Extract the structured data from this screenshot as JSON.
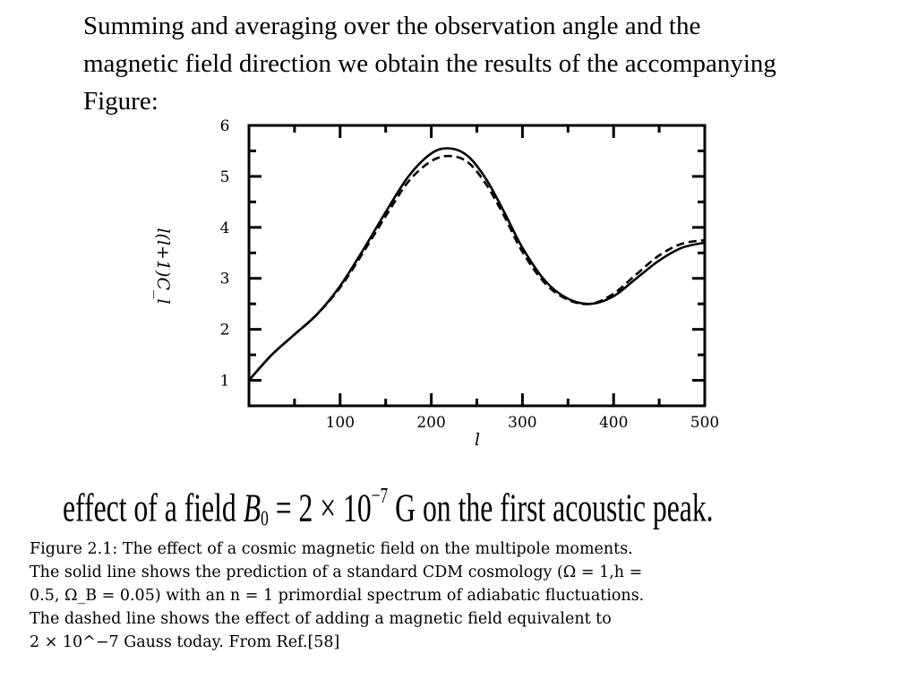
{
  "intro_lines": [
    "Summing and averaging over the observation angle and the",
    "magnetic field direction we obtain the results of the accompanying",
    "Figure:"
  ],
  "headline": {
    "part1": "effect of a field ",
    "b": "B",
    "b_sub": "0",
    "part2": " = 2 × 10",
    "exp": "−7",
    "part3": " G on the first acoustic peak."
  },
  "caption_lines": [
    "Figure 2.1: The effect of a cosmic magnetic field on the multipole moments.",
    "The solid line shows the prediction of a standard CDM cosmology (Ω = 1,h =",
    "0.5, Ω_B = 0.05) with an n = 1 primordial spectrum of adiabatic fluctuations.",
    "The dashed line shows the effect of adding a magnetic field equivalent to",
    "2 × 10^−7 Gauss today. From Ref.[58]"
  ],
  "chart_data": {
    "type": "line",
    "xlabel": "l",
    "ylabel": "l(l+1)C_l",
    "xlim": [
      0,
      500
    ],
    "ylim": [
      0.5,
      6
    ],
    "xticks": [
      100,
      200,
      300,
      400,
      500
    ],
    "yticks": [
      1,
      2,
      3,
      4,
      5,
      6
    ],
    "legend": "none",
    "grid": false,
    "series": [
      {
        "style": "solid",
        "x": [
          0,
          25,
          50,
          75,
          100,
          125,
          150,
          175,
          200,
          220,
          240,
          260,
          280,
          300,
          325,
          350,
          375,
          400,
          425,
          450,
          475,
          500
        ],
        "y": [
          1.0,
          1.5,
          1.9,
          2.3,
          2.85,
          3.55,
          4.3,
          5.0,
          5.45,
          5.55,
          5.4,
          4.95,
          4.3,
          3.6,
          2.95,
          2.6,
          2.5,
          2.65,
          3.0,
          3.35,
          3.6,
          3.7
        ]
      },
      {
        "style": "dashed",
        "x": [
          0,
          25,
          50,
          75,
          100,
          125,
          150,
          175,
          200,
          220,
          240,
          260,
          280,
          300,
          325,
          350,
          375,
          400,
          425,
          450,
          475,
          500
        ],
        "y": [
          1.0,
          1.5,
          1.9,
          2.3,
          2.82,
          3.5,
          4.22,
          4.9,
          5.3,
          5.4,
          5.28,
          4.85,
          4.22,
          3.52,
          2.9,
          2.58,
          2.5,
          2.7,
          3.08,
          3.45,
          3.68,
          3.75
        ]
      }
    ]
  }
}
